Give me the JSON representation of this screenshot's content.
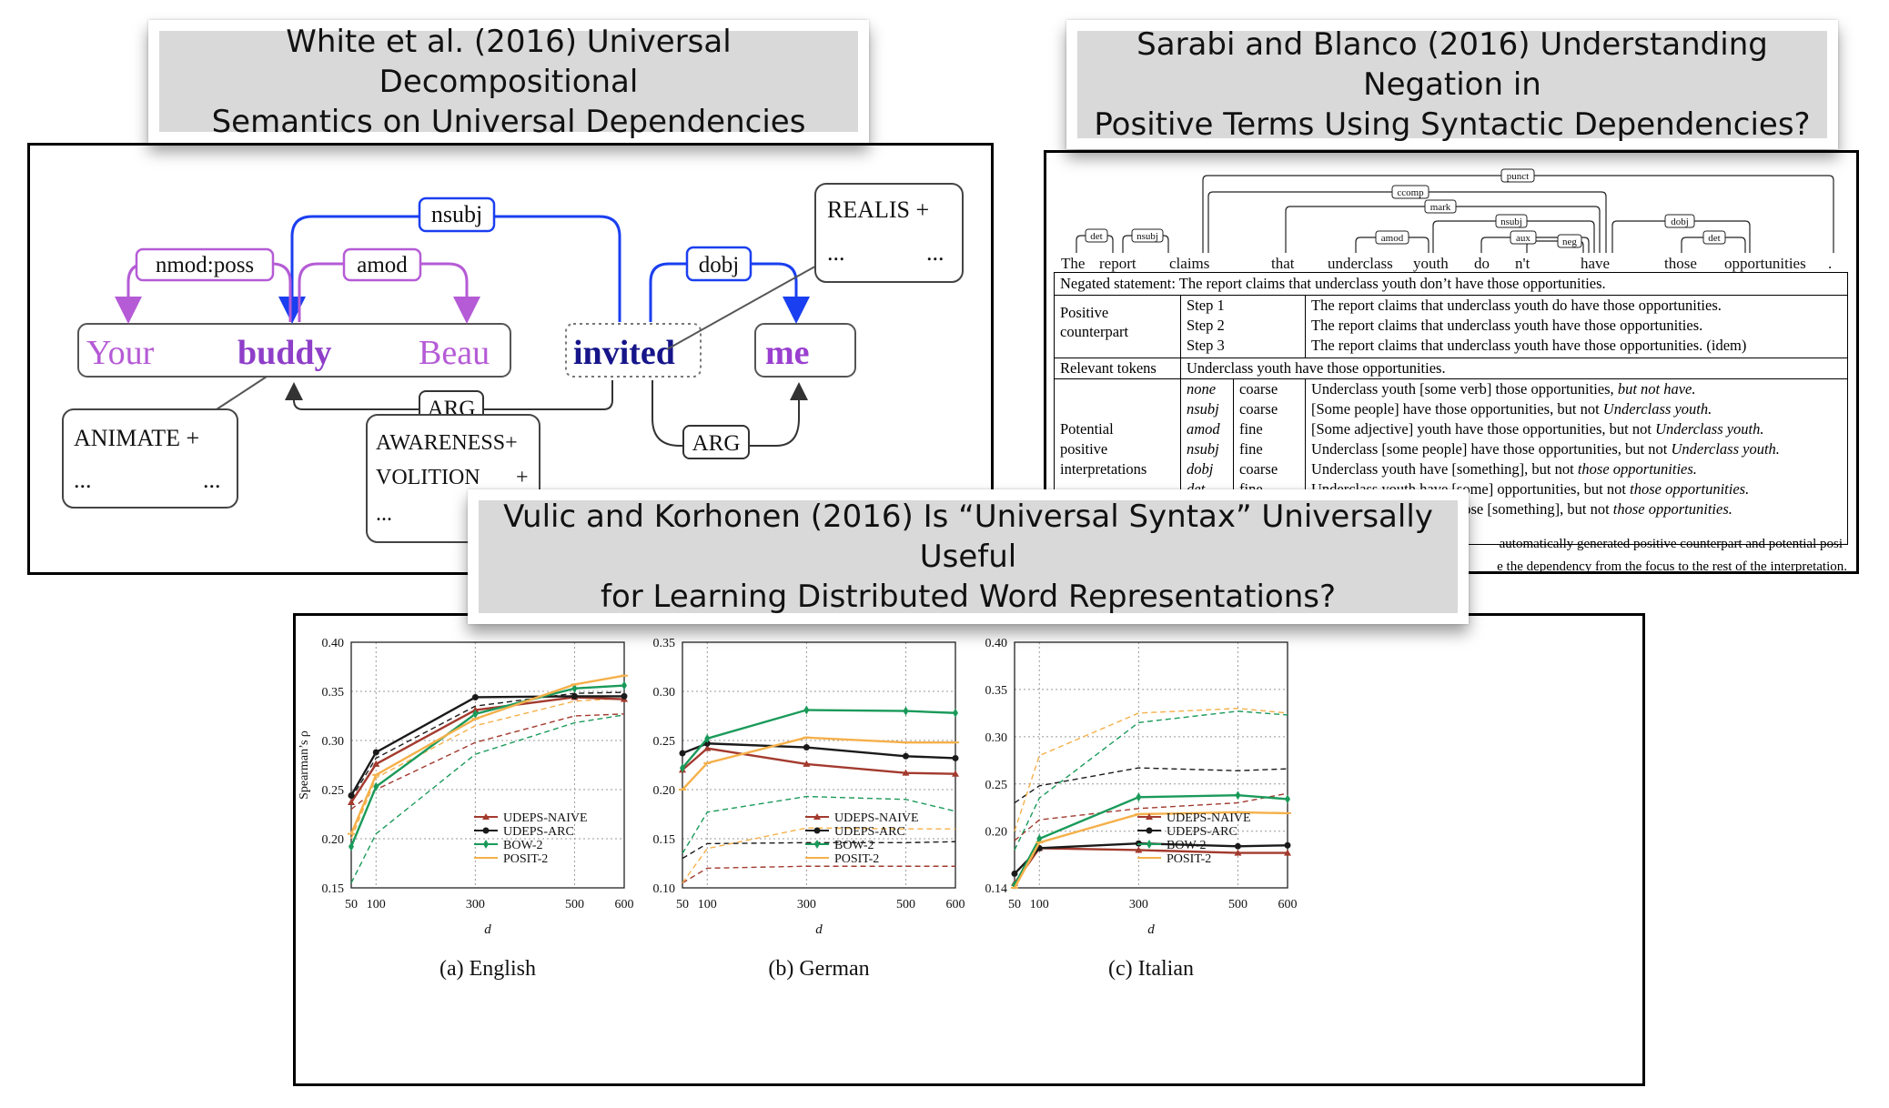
{
  "callouts": {
    "white": {
      "line1": "White et al. (2016) Universal Decompositional",
      "line2": "Semantics on Universal Dependencies"
    },
    "sarabi": {
      "line1": "Sarabi and Blanco (2016) Understanding Negation in",
      "line2": "Positive Terms Using Syntactic Dependencies?"
    },
    "vulic": {
      "line1": "Vulic and Korhonen (2016) Is “Universal Syntax” Universally Useful",
      "line2": "for Learning Distributed Word Representations?"
    }
  },
  "uds": {
    "words": [
      "Your",
      "buddy",
      "Beau",
      "invited",
      "me"
    ],
    "edges": {
      "nsubj": "nsubj",
      "nmod": "nmod:poss",
      "amod": "amod",
      "dobj": "dobj",
      "arg1": "ARG",
      "arg2": "ARG"
    },
    "realis": {
      "l1": "REALIS +",
      "l2": "...",
      "l3": "..."
    },
    "animate": {
      "l1": "ANIMATE +",
      "l2": "...",
      "l3": "..."
    },
    "awareness": {
      "l1": "AWARENESS+",
      "l2": "VOLITION",
      "plus": "+",
      "l3": "..."
    },
    "colors": {
      "blue": "#1a3ff0",
      "purple": "#b55bd6",
      "dark_blue": "#16158a"
    }
  },
  "negation": {
    "tokens": [
      "The",
      "report",
      "claims",
      "that",
      "underclass",
      "youth",
      "do",
      "n't",
      "have",
      "those",
      "opportunities",
      "."
    ],
    "arc_labels": [
      "det",
      "nsubj",
      "punct",
      "ccomp",
      "mark",
      "nsubj",
      "amod",
      "aux",
      "neg",
      "dobj",
      "det"
    ],
    "negated_label": "Negated statement:",
    "negated_text": "The report claims that underclass youth don’t have those opportunities.",
    "positive_label_1": "Positive",
    "positive_label_2": "counterpart",
    "steps": [
      {
        "step": "Step 1",
        "text": "The report claims that underclass youth do have those opportunities."
      },
      {
        "step": "Step 2",
        "text": "The report claims that underclass youth have those opportunities."
      },
      {
        "step": "Step 3",
        "text": "The report claims that underclass youth have those opportunities. (idem)"
      }
    ],
    "relevant_label": "Relevant tokens",
    "relevant_text": "Underclass youth have those opportunities.",
    "potential_label": [
      "Potential",
      "positive",
      "interpretations"
    ],
    "interps": [
      {
        "dep": "none",
        "gran": "coarse",
        "pre": "Underclass youth [some verb] those opportunities, ",
        "post": "but not have."
      },
      {
        "dep": "nsubj",
        "gran": "coarse",
        "pre": "[Some people] have those opportunities, but not ",
        "post": "Underclass youth."
      },
      {
        "dep": "amod",
        "gran": "fine",
        "pre": "[Some adjective] youth have those opportunities, but not ",
        "post": "Underclass youth."
      },
      {
        "dep": "nsubj",
        "gran": "fine",
        "pre": "Underclass [some people] have those opportunities, but not ",
        "post": "Underclass youth."
      },
      {
        "dep": "dobj",
        "gran": "coarse",
        "pre": "Underclass youth have [something], but not ",
        "post": "those opportunities."
      },
      {
        "dep": "det",
        "gran": "fine",
        "pre": "Underclass youth have [some] opportunities, but not ",
        "post": "those opportunities."
      },
      {
        "dep": "",
        "gran": "",
        "pre": "Underclass youth have those [something], but not ",
        "post": "those opportunities."
      }
    ],
    "caption_1": "automatically generated positive counterpart and potential posi-",
    "caption_2": "e the dependency from the focus to the rest of the interpretation."
  },
  "charts_meta": {
    "ylabel": "Spearman’s ρ",
    "xlabel": "d",
    "legend": [
      "UDEPS-NAIVE",
      "UDEPS-ARC",
      "BOW-2",
      "POSIT-2"
    ],
    "colors": {
      "naive": "#a33a2e",
      "arc": "#1a1a1a",
      "bow": "#1a9a5a",
      "posit": "#f5b04a"
    }
  },
  "chart_data": [
    {
      "type": "line",
      "title": "(a)  English",
      "xlabel": "d",
      "ylabel": "Spearman’s ρ",
      "x": [
        50,
        100,
        300,
        500,
        600
      ],
      "xlim": [
        50,
        600
      ],
      "ylim": [
        0.15,
        0.4
      ],
      "yticks": [
        "0.15",
        "0.20",
        "0.25",
        "0.30",
        "0.35",
        "0.40"
      ],
      "grid": true,
      "legend_position": "bottom-right",
      "series": [
        {
          "name": "UDEPS-NAIVE",
          "style": "solid",
          "values": [
            0.237,
            0.276,
            0.331,
            0.344,
            0.342
          ]
        },
        {
          "name": "UDEPS-ARC",
          "style": "solid",
          "values": [
            0.244,
            0.288,
            0.344,
            0.345,
            0.345
          ]
        },
        {
          "name": "BOW-2",
          "style": "solid",
          "values": [
            0.192,
            0.253,
            0.327,
            0.353,
            0.356
          ]
        },
        {
          "name": "POSIT-2",
          "style": "solid",
          "values": [
            0.205,
            0.265,
            0.322,
            0.357,
            0.366
          ]
        },
        {
          "name": "UDEPS-NAIVE",
          "style": "dashed",
          "values": [
            0.23,
            0.25,
            0.298,
            0.325,
            0.327
          ]
        },
        {
          "name": "UDEPS-ARC",
          "style": "dashed",
          "values": [
            0.241,
            0.282,
            0.335,
            0.348,
            0.349
          ]
        },
        {
          "name": "BOW-2",
          "style": "dashed",
          "values": [
            0.155,
            0.205,
            0.286,
            0.318,
            0.326
          ]
        },
        {
          "name": "POSIT-2",
          "style": "dashed",
          "values": [
            0.2,
            0.262,
            0.315,
            0.34,
            0.343
          ]
        }
      ]
    },
    {
      "type": "line",
      "title": "(b)  German",
      "xlabel": "d",
      "ylabel": "",
      "x": [
        50,
        100,
        300,
        500,
        600
      ],
      "xlim": [
        50,
        600
      ],
      "ylim": [
        0.1,
        0.35
      ],
      "yticks": [
        "0.10",
        "0.15",
        "0.20",
        "0.25",
        "0.30",
        "0.35"
      ],
      "grid": true,
      "legend_position": "bottom-right",
      "series": [
        {
          "name": "UDEPS-NAIVE",
          "style": "solid",
          "values": [
            0.22,
            0.242,
            0.226,
            0.217,
            0.216
          ]
        },
        {
          "name": "UDEPS-ARC",
          "style": "solid",
          "values": [
            0.237,
            0.247,
            0.243,
            0.234,
            0.232
          ]
        },
        {
          "name": "BOW-2",
          "style": "solid",
          "values": [
            0.222,
            0.252,
            0.281,
            0.28,
            0.278
          ]
        },
        {
          "name": "POSIT-2",
          "style": "solid",
          "values": [
            0.2,
            0.227,
            0.253,
            0.248,
            0.248
          ]
        },
        {
          "name": "UDEPS-NAIVE",
          "style": "dashed",
          "values": [
            0.105,
            0.12,
            0.122,
            0.122,
            0.122
          ]
        },
        {
          "name": "UDEPS-ARC",
          "style": "dashed",
          "values": [
            0.13,
            0.145,
            0.146,
            0.146,
            0.147
          ]
        },
        {
          "name": "BOW-2",
          "style": "dashed",
          "values": [
            0.135,
            0.177,
            0.193,
            0.19,
            0.178
          ]
        },
        {
          "name": "POSIT-2",
          "style": "dashed",
          "values": [
            0.105,
            0.14,
            0.161,
            0.16,
            0.16
          ]
        }
      ]
    },
    {
      "type": "line",
      "title": "(c)  Italian",
      "xlabel": "d",
      "ylabel": "",
      "x": [
        50,
        100,
        300,
        500,
        600
      ],
      "xlim": [
        50,
        600
      ],
      "ylim": [
        0.14,
        0.4
      ],
      "yticks": [
        "0.14",
        "0.20",
        "0.25",
        "0.30",
        "0.35",
        "0.40"
      ],
      "grid": true,
      "legend_position": "bottom-right",
      "series": [
        {
          "name": "UDEPS-NAIVE",
          "style": "solid",
          "values": [
            0.145,
            0.182,
            0.18,
            0.177,
            0.177
          ]
        },
        {
          "name": "UDEPS-ARC",
          "style": "solid",
          "values": [
            0.155,
            0.182,
            0.187,
            0.184,
            0.185
          ]
        },
        {
          "name": "BOW-2",
          "style": "solid",
          "values": [
            0.143,
            0.192,
            0.236,
            0.238,
            0.234
          ]
        },
        {
          "name": "POSIT-2",
          "style": "solid",
          "values": [
            0.14,
            0.188,
            0.218,
            0.22,
            0.219
          ]
        },
        {
          "name": "UDEPS-NAIVE",
          "style": "dashed",
          "values": [
            0.19,
            0.212,
            0.224,
            0.23,
            0.24
          ]
        },
        {
          "name": "UDEPS-ARC",
          "style": "dashed",
          "values": [
            0.23,
            0.248,
            0.267,
            0.264,
            0.266
          ]
        },
        {
          "name": "BOW-2",
          "style": "dashed",
          "values": [
            0.18,
            0.235,
            0.315,
            0.327,
            0.323
          ]
        },
        {
          "name": "POSIT-2",
          "style": "dashed",
          "values": [
            0.2,
            0.28,
            0.325,
            0.33,
            0.325
          ]
        }
      ]
    }
  ]
}
